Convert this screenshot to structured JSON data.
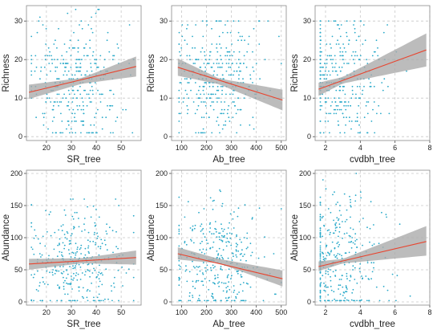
{
  "chart_data": [
    {
      "type": "scatter",
      "xlabel": "SR_tree",
      "ylabel": "Richness",
      "xlim": [
        12,
        58
      ],
      "ylim": [
        -1,
        34
      ],
      "xticks": [
        "20",
        "30",
        "40",
        "50"
      ],
      "yticks": [
        "0",
        "10",
        "20",
        "30"
      ],
      "points": {
        "x_range": [
          14,
          55
        ],
        "x_center": 32,
        "y_range": [
          1,
          33
        ],
        "y_mean": 15,
        "count": 330
      },
      "fit_line": {
        "x": [
          13,
          56
        ],
        "y": [
          11.5,
          18.2
        ]
      },
      "ci_band": {
        "x": [
          13,
          34,
          56
        ],
        "lower": [
          9.8,
          13.7,
          15.6
        ],
        "upper": [
          13.5,
          15.2,
          20.8
        ]
      }
    },
    {
      "type": "scatter",
      "xlabel": "Ab_tree",
      "ylabel": "Richness",
      "xlim": [
        60,
        520
      ],
      "ylim": [
        -1,
        34
      ],
      "xticks": [
        "100",
        "200",
        "300",
        "400",
        "500"
      ],
      "yticks": [
        "0",
        "10",
        "20",
        "30"
      ],
      "points": {
        "x_range": [
          90,
          500
        ],
        "x_center": 240,
        "y_range": [
          1,
          30
        ],
        "y_mean": 15,
        "count": 330
      },
      "fit_line": {
        "x": [
          85,
          505
        ],
        "y": [
          18.0,
          9.5
        ]
      },
      "ci_band": {
        "x": [
          85,
          250,
          505
        ],
        "lower": [
          15.8,
          13.6,
          6.8
        ],
        "upper": [
          20.3,
          15.1,
          12.2
        ]
      }
    },
    {
      "type": "scatter",
      "xlabel": "cvdbh_tree",
      "ylabel": "Richness",
      "xlim": [
        1.4,
        8.0
      ],
      "ylim": [
        -1,
        34
      ],
      "xticks": [
        "2",
        "4",
        "6",
        "8"
      ],
      "yticks": [
        "0",
        "10",
        "20",
        "30"
      ],
      "points": {
        "x_range": [
          1.7,
          7.6
        ],
        "x_center": 2.7,
        "y_range": [
          1,
          30
        ],
        "y_mean": 15,
        "count": 330
      },
      "fit_line": {
        "x": [
          1.6,
          7.8
        ],
        "y": [
          12.3,
          22.5
        ]
      },
      "ci_band": {
        "x": [
          1.6,
          3.0,
          7.8
        ],
        "lower": [
          10.6,
          13.8,
          18.2
        ],
        "upper": [
          14.0,
          15.5,
          26.8
        ]
      }
    },
    {
      "type": "scatter",
      "xlabel": "SR_tree",
      "ylabel": "Abundance",
      "xlim": [
        12,
        58
      ],
      "ylim": [
        -5,
        205
      ],
      "xticks": [
        "20",
        "30",
        "40",
        "50"
      ],
      "yticks": [
        "0",
        "50",
        "100",
        "150",
        "200"
      ],
      "points": {
        "x_range": [
          14,
          55
        ],
        "x_center": 32,
        "y_range": [
          2,
          160
        ],
        "y_mean": 60,
        "count": 330
      },
      "fit_line": {
        "x": [
          13,
          56
        ],
        "y": [
          59,
          69
        ]
      },
      "ci_band": {
        "x": [
          13,
          34,
          56
        ],
        "lower": [
          50,
          60,
          58
        ],
        "upper": [
          67,
          68,
          80
        ]
      }
    },
    {
      "type": "scatter",
      "xlabel": "Ab_tree",
      "ylabel": "Abundance",
      "xlim": [
        60,
        520
      ],
      "ylim": [
        -5,
        205
      ],
      "xticks": [
        "100",
        "200",
        "300",
        "400",
        "500"
      ],
      "yticks": [
        "0",
        "50",
        "100",
        "150",
        "200"
      ],
      "points": {
        "x_range": [
          90,
          500
        ],
        "x_center": 240,
        "y_range": [
          2,
          175
        ],
        "y_mean": 62,
        "count": 330
      },
      "fit_line": {
        "x": [
          85,
          505
        ],
        "y": [
          75,
          36
        ]
      },
      "ci_band": {
        "x": [
          85,
          250,
          505
        ],
        "lower": [
          66,
          60,
          24
        ],
        "upper": [
          85,
          67,
          49
        ]
      }
    },
    {
      "type": "scatter",
      "xlabel": "cvdbh_tree",
      "ylabel": "Abundance",
      "xlim": [
        1.4,
        8.0
      ],
      "ylim": [
        -5,
        205
      ],
      "xticks": [
        "2",
        "4",
        "6",
        "8"
      ],
      "yticks": [
        "0",
        "50",
        "100",
        "150",
        "200"
      ],
      "points": {
        "x_range": [
          1.7,
          7.6
        ],
        "x_center": 2.7,
        "y_range": [
          2,
          200
        ],
        "y_mean": 62,
        "count": 330
      },
      "fit_line": {
        "x": [
          1.6,
          7.8
        ],
        "y": [
          55,
          94
        ]
      },
      "ci_band": {
        "x": [
          1.6,
          3.0,
          7.8
        ],
        "lower": [
          48,
          60,
          72
        ],
        "upper": [
          63,
          67,
          118
        ]
      }
    }
  ],
  "colors": {
    "points": "#29a9c9",
    "fit_line": "#e8442e",
    "ci_band": "#a9a9a9",
    "grid": "#c8c8c8",
    "frame": "#8a8a8a"
  },
  "grid": true,
  "layout": "2 rows x 3 columns"
}
